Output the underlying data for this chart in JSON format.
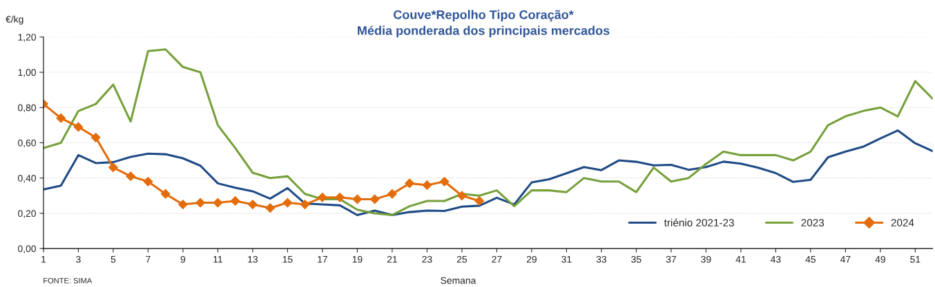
{
  "chart_data": {
    "type": "line",
    "title": "Couve*Repolho Tipo Coração*",
    "subtitle": "Média ponderada dos principais mercados",
    "ylabel": "€/kg",
    "xlabel": "Semana",
    "annotations": [
      "FONTE: SIMA"
    ],
    "x": [
      1,
      2,
      3,
      4,
      5,
      6,
      7,
      8,
      9,
      10,
      11,
      12,
      13,
      14,
      15,
      16,
      17,
      18,
      19,
      20,
      21,
      22,
      23,
      24,
      25,
      26,
      27,
      28,
      29,
      30,
      31,
      32,
      33,
      34,
      35,
      36,
      37,
      38,
      39,
      40,
      41,
      42,
      43,
      44,
      45,
      46,
      47,
      48,
      49,
      50,
      51,
      52
    ],
    "series": [
      {
        "name": "triénio 2021-23",
        "color": "#1f4a85",
        "marker": "none",
        "values": [
          0.335,
          0.357,
          0.53,
          0.485,
          0.49,
          0.52,
          0.538,
          0.535,
          0.512,
          0.47,
          0.37,
          0.345,
          0.325,
          0.283,
          0.343,
          0.255,
          0.25,
          0.245,
          0.19,
          0.215,
          0.19,
          0.207,
          0.215,
          0.213,
          0.238,
          0.243,
          0.288,
          0.25,
          0.375,
          0.393,
          0.427,
          0.462,
          0.445,
          0.5,
          0.492,
          0.472,
          0.475,
          0.447,
          0.462,
          0.493,
          0.482,
          0.458,
          0.428,
          0.378,
          0.39,
          0.518,
          0.55,
          0.577,
          0.625,
          0.67,
          0.597,
          0.553
        ]
      },
      {
        "name": "2023",
        "color": "#76a03a",
        "marker": "none",
        "values": [
          0.57,
          0.6,
          0.78,
          0.82,
          0.93,
          0.72,
          1.12,
          1.13,
          1.03,
          1.0,
          0.7,
          0.57,
          0.43,
          0.4,
          0.41,
          0.31,
          0.28,
          0.28,
          0.22,
          0.2,
          0.19,
          0.24,
          0.27,
          0.27,
          0.31,
          0.3,
          0.33,
          0.24,
          0.33,
          0.33,
          0.32,
          0.4,
          0.38,
          0.38,
          0.32,
          0.46,
          0.38,
          0.4,
          0.48,
          0.55,
          0.53,
          0.53,
          0.53,
          0.5,
          0.55,
          0.7,
          0.75,
          0.78,
          0.8,
          0.75,
          0.95,
          0.85
        ]
      },
      {
        "name": "2024",
        "color": "#e46c0a",
        "marker": "diamond",
        "values": [
          0.82,
          0.74,
          0.69,
          0.63,
          0.46,
          0.41,
          0.38,
          0.31,
          0.25,
          0.26,
          0.26,
          0.27,
          0.25,
          0.23,
          0.26,
          0.25,
          0.29,
          0.29,
          0.28,
          0.28,
          0.31,
          0.37,
          0.36,
          0.38,
          0.3,
          0.27,
          null,
          null,
          null,
          null,
          null,
          null,
          null,
          null,
          null,
          null,
          null,
          null,
          null,
          null,
          null,
          null,
          null,
          null,
          null,
          null,
          null,
          null,
          null,
          null,
          null,
          null
        ]
      }
    ],
    "xlim": [
      1,
      52
    ],
    "xticks": [
      1,
      3,
      5,
      7,
      9,
      11,
      13,
      15,
      17,
      19,
      21,
      23,
      25,
      27,
      29,
      31,
      33,
      35,
      37,
      39,
      41,
      43,
      45,
      47,
      49,
      51
    ],
    "ylim": [
      0,
      1.2
    ],
    "yticks": [
      {
        "value": 0,
        "label": "0,00"
      },
      {
        "value": 0.2,
        "label": "0,20"
      },
      {
        "value": 0.4,
        "label": "0,40"
      },
      {
        "value": 0.6,
        "label": "0,60"
      },
      {
        "value": 0.8,
        "label": "0,80"
      },
      {
        "value": 1.0,
        "label": "1,00"
      },
      {
        "value": 1.2,
        "label": "1,20"
      }
    ],
    "grid": "y",
    "legend": "bottom right",
    "line_style": "solid"
  }
}
